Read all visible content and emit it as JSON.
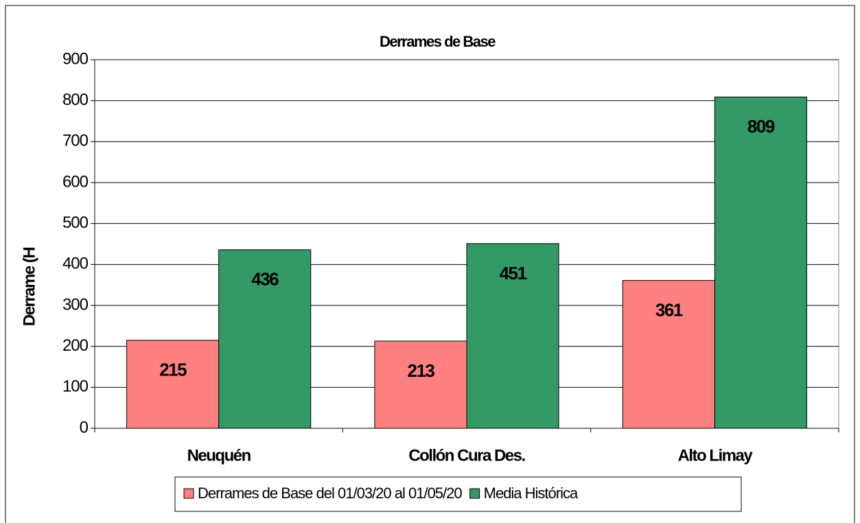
{
  "chart_data": {
    "type": "bar",
    "title": "Derrames de Base",
    "y_label": "Derrame (H",
    "categories": [
      "Neuquén",
      "Collón Cura Des.",
      "Alto Limay"
    ],
    "series": [
      {
        "name": "Derrames de Base del 01/03/20 al 01/05/20",
        "color": "#ff8080",
        "values": [
          215,
          213,
          361
        ]
      },
      {
        "name": "Media Histórica",
        "color": "#339966",
        "values": [
          436,
          451,
          809
        ]
      }
    ],
    "ylim": [
      0,
      900
    ],
    "yticks": [
      0,
      100,
      200,
      300,
      400,
      500,
      600,
      700,
      800,
      900
    ],
    "grid": true
  }
}
